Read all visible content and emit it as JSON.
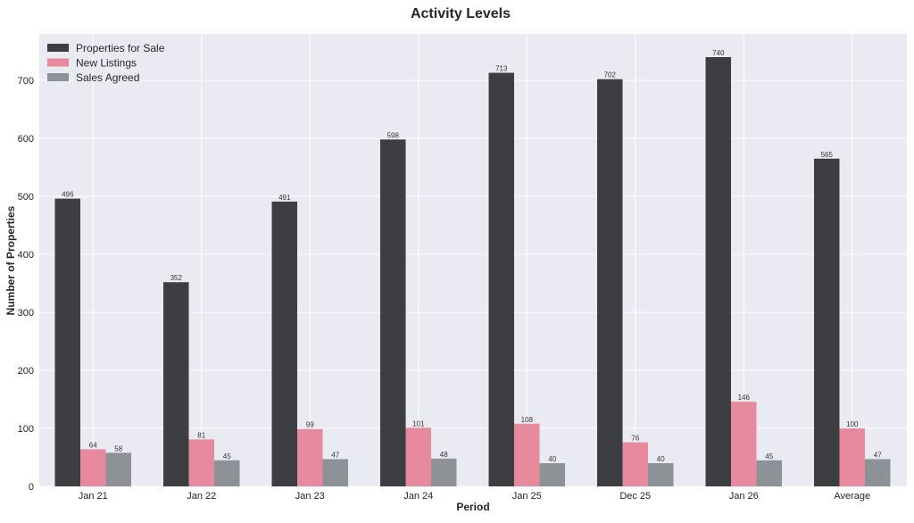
{
  "chart_data": {
    "type": "bar",
    "title": "Activity Levels",
    "xlabel": "Period",
    "ylabel": "Number of Properties",
    "categories": [
      "Jan 21",
      "Jan 22",
      "Jan 23",
      "Jan 24",
      "Jan 25",
      "Dec 25",
      "Jan 26",
      "Average"
    ],
    "series": [
      {
        "name": "Properties for Sale",
        "color": "#3d3e42",
        "values": [
          496,
          352,
          491,
          598,
          713,
          702,
          740,
          565
        ]
      },
      {
        "name": "New Listings",
        "color": "#e78a9e",
        "values": [
          64,
          81,
          99,
          101,
          108,
          76,
          146,
          100
        ]
      },
      {
        "name": "Sales Agreed",
        "color": "#8e9196",
        "values": [
          58,
          45,
          47,
          48,
          40,
          40,
          45,
          47
        ]
      }
    ],
    "ylim": [
      0,
      780
    ],
    "yticks": [
      0,
      100,
      200,
      300,
      400,
      500,
      600,
      700
    ],
    "grid": true,
    "legend": "top-left",
    "plot_background": "#eaeaf2"
  }
}
